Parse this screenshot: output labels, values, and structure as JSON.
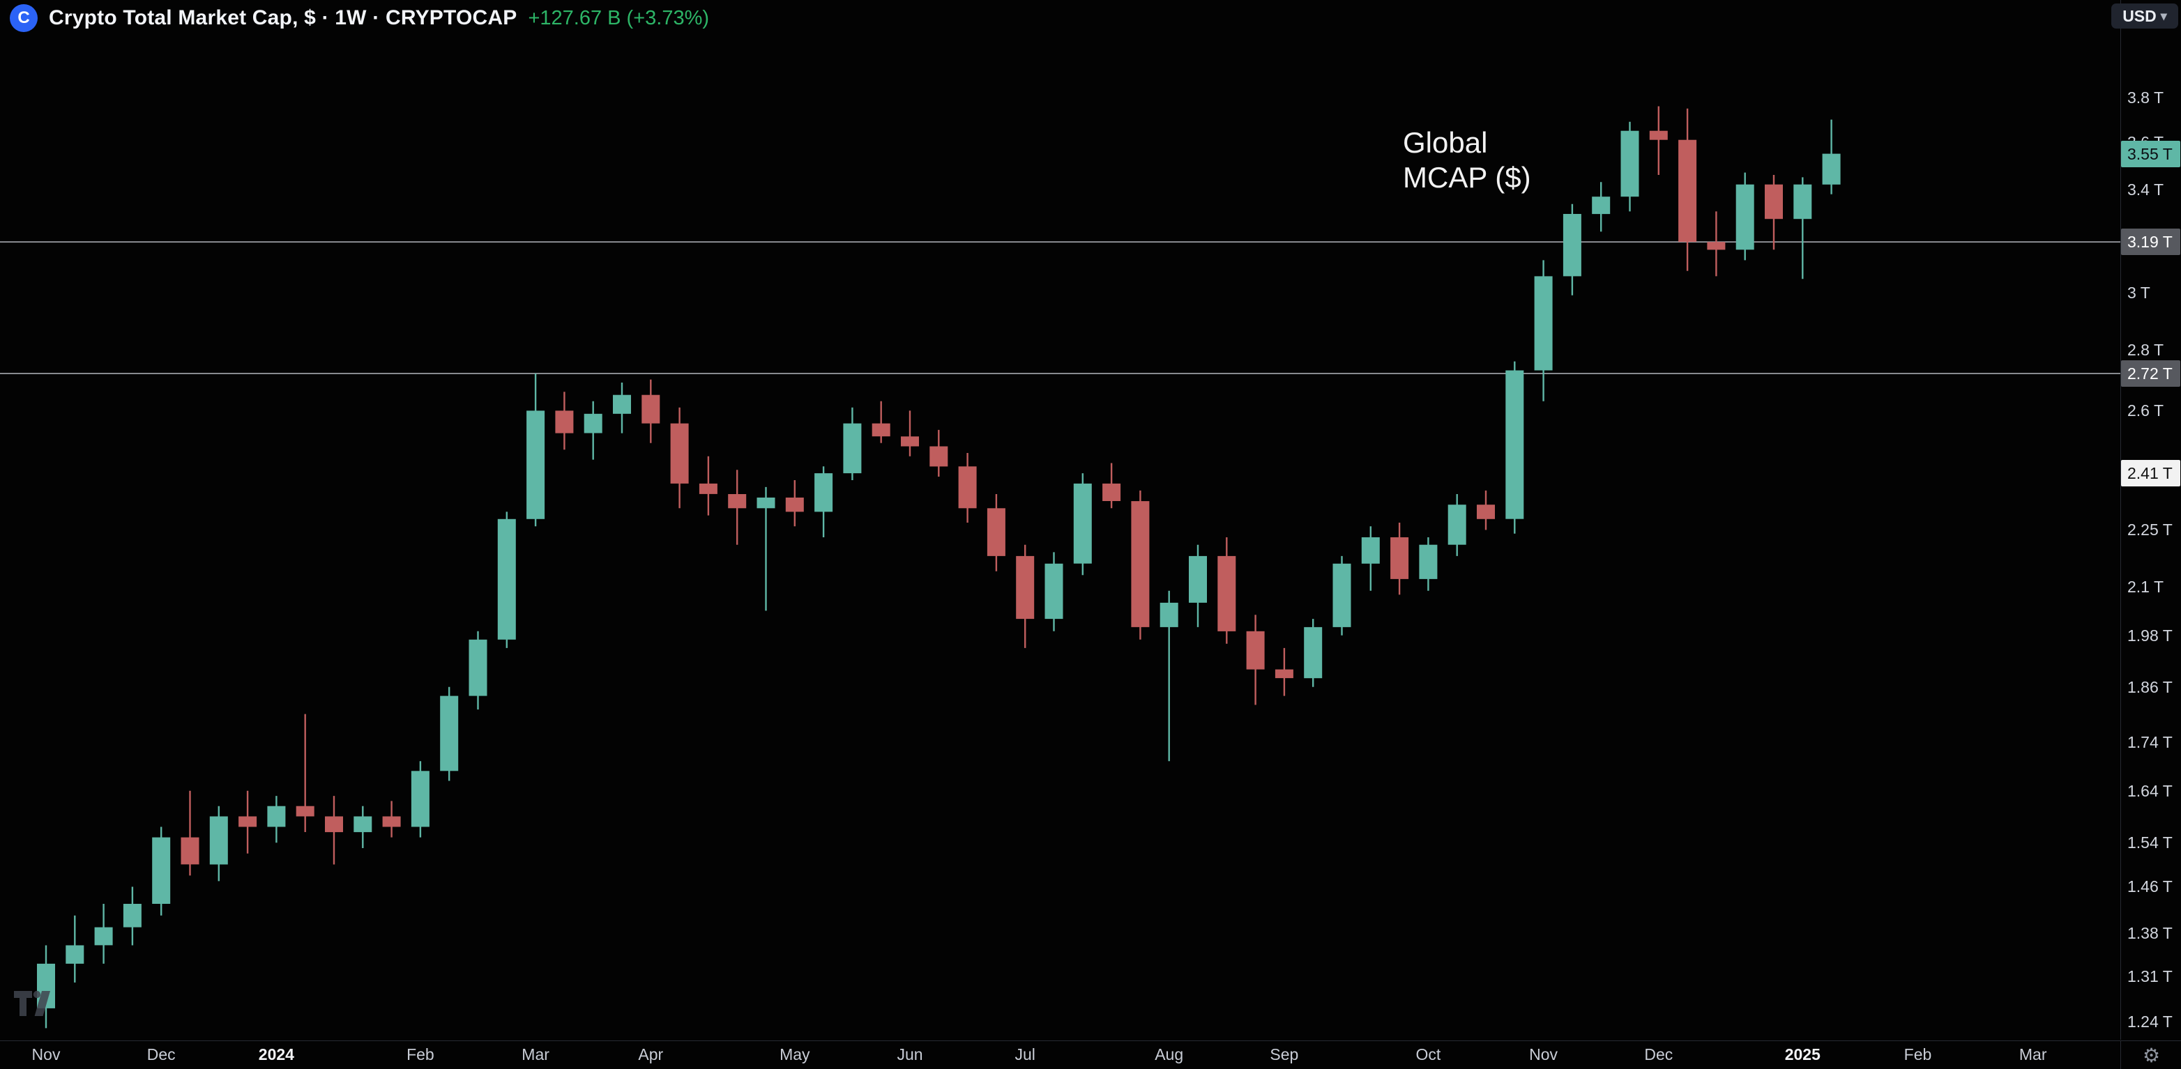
{
  "header": {
    "logo_letter": "C",
    "logo_bg": "#2b63f6",
    "symbol_title": "Crypto Total Market Cap, $ · 1W · CRYPTOCAP",
    "change": "+127.67 B (+3.73%)",
    "change_color": "#2db567"
  },
  "toolbar": {
    "currency_label": "USD"
  },
  "annotation": {
    "line1": "Global",
    "line2": "MCAP ($)"
  },
  "chart_data": {
    "type": "candlestick",
    "title": "Crypto Total Market Cap, $ · 1W · CRYPTOCAP",
    "annotation": "Global MCAP ($)",
    "scale": "logarithmic",
    "unit": "USD trillions",
    "interval": "1W",
    "last_price": 3.55,
    "last_bar_change": "+127.67 B (+3.73%)",
    "ylim": [
      1.21,
      3.85
    ],
    "colors": {
      "up": "#5fb7a6",
      "down": "#c05e5e",
      "level_line": "#a6a9b0"
    },
    "ohlc_order": [
      "open",
      "high",
      "low",
      "close"
    ],
    "candles": [
      [
        1.26,
        1.36,
        1.23,
        1.33
      ],
      [
        1.33,
        1.41,
        1.3,
        1.36
      ],
      [
        1.36,
        1.43,
        1.33,
        1.39
      ],
      [
        1.39,
        1.46,
        1.36,
        1.43
      ],
      [
        1.43,
        1.57,
        1.41,
        1.55
      ],
      [
        1.55,
        1.64,
        1.48,
        1.5
      ],
      [
        1.5,
        1.61,
        1.47,
        1.59
      ],
      [
        1.59,
        1.64,
        1.52,
        1.57
      ],
      [
        1.57,
        1.63,
        1.54,
        1.61
      ],
      [
        1.61,
        1.8,
        1.56,
        1.59
      ],
      [
        1.59,
        1.63,
        1.5,
        1.56
      ],
      [
        1.56,
        1.61,
        1.53,
        1.59
      ],
      [
        1.59,
        1.62,
        1.55,
        1.57
      ],
      [
        1.57,
        1.7,
        1.55,
        1.68
      ],
      [
        1.68,
        1.86,
        1.66,
        1.84
      ],
      [
        1.84,
        1.99,
        1.81,
        1.97
      ],
      [
        1.97,
        2.3,
        1.95,
        2.28
      ],
      [
        2.28,
        2.72,
        2.26,
        2.6
      ],
      [
        2.6,
        2.66,
        2.48,
        2.53
      ],
      [
        2.53,
        2.63,
        2.45,
        2.59
      ],
      [
        2.59,
        2.69,
        2.53,
        2.65
      ],
      [
        2.65,
        2.7,
        2.5,
        2.56
      ],
      [
        2.56,
        2.61,
        2.31,
        2.38
      ],
      [
        2.38,
        2.46,
        2.29,
        2.35
      ],
      [
        2.35,
        2.42,
        2.21,
        2.31
      ],
      [
        2.31,
        2.37,
        2.04,
        2.34
      ],
      [
        2.34,
        2.39,
        2.26,
        2.3
      ],
      [
        2.3,
        2.43,
        2.23,
        2.41
      ],
      [
        2.41,
        2.61,
        2.39,
        2.56
      ],
      [
        2.56,
        2.63,
        2.5,
        2.52
      ],
      [
        2.52,
        2.6,
        2.46,
        2.49
      ],
      [
        2.49,
        2.54,
        2.4,
        2.43
      ],
      [
        2.43,
        2.47,
        2.27,
        2.31
      ],
      [
        2.31,
        2.35,
        2.14,
        2.18
      ],
      [
        2.18,
        2.21,
        1.95,
        2.02
      ],
      [
        2.02,
        2.19,
        1.99,
        2.16
      ],
      [
        2.16,
        2.41,
        2.13,
        2.38
      ],
      [
        2.38,
        2.44,
        2.31,
        2.33
      ],
      [
        2.33,
        2.36,
        1.97,
        2.0
      ],
      [
        2.0,
        2.09,
        1.7,
        2.06
      ],
      [
        2.06,
        2.21,
        2.0,
        2.18
      ],
      [
        2.18,
        2.23,
        1.96,
        1.99
      ],
      [
        1.99,
        2.03,
        1.82,
        1.9
      ],
      [
        1.9,
        1.95,
        1.84,
        1.88
      ],
      [
        1.88,
        2.02,
        1.86,
        2.0
      ],
      [
        2.0,
        2.18,
        1.98,
        2.16
      ],
      [
        2.16,
        2.26,
        2.09,
        2.23
      ],
      [
        2.23,
        2.27,
        2.08,
        2.12
      ],
      [
        2.12,
        2.23,
        2.09,
        2.21
      ],
      [
        2.21,
        2.35,
        2.18,
        2.32
      ],
      [
        2.32,
        2.36,
        2.25,
        2.28
      ],
      [
        2.28,
        2.76,
        2.24,
        2.73
      ],
      [
        2.73,
        3.12,
        2.63,
        3.06
      ],
      [
        3.06,
        3.34,
        2.99,
        3.3
      ],
      [
        3.3,
        3.43,
        3.23,
        3.37
      ],
      [
        3.37,
        3.69,
        3.31,
        3.65
      ],
      [
        3.65,
        3.76,
        3.46,
        3.61
      ],
      [
        3.61,
        3.75,
        3.08,
        3.19
      ],
      [
        3.19,
        3.31,
        3.06,
        3.16
      ],
      [
        3.16,
        3.47,
        3.12,
        3.42
      ],
      [
        3.42,
        3.46,
        3.16,
        3.28
      ],
      [
        3.28,
        3.45,
        3.05,
        3.42
      ],
      [
        3.42,
        3.7,
        3.38,
        3.55
      ]
    ],
    "horizontal_lines": [
      {
        "value": 3.19
      },
      {
        "value": 2.72
      }
    ],
    "y_ticks": [
      {
        "label": "3.8 T",
        "value": 3.8
      },
      {
        "label": "3.6 T",
        "value": 3.6
      },
      {
        "label": "3.4 T",
        "value": 3.4
      },
      {
        "label": "3 T",
        "value": 3.0
      },
      {
        "label": "2.8 T",
        "value": 2.8
      },
      {
        "label": "2.6 T",
        "value": 2.6
      },
      {
        "label": "2.25 T",
        "value": 2.25
      },
      {
        "label": "2.1 T",
        "value": 2.1
      },
      {
        "label": "1.98 T",
        "value": 1.98
      },
      {
        "label": "1.86 T",
        "value": 1.86
      },
      {
        "label": "1.74 T",
        "value": 1.74
      },
      {
        "label": "1.64 T",
        "value": 1.64
      },
      {
        "label": "1.54 T",
        "value": 1.54
      },
      {
        "label": "1.46 T",
        "value": 1.46
      },
      {
        "label": "1.38 T",
        "value": 1.38
      },
      {
        "label": "1.31 T",
        "value": 1.31
      },
      {
        "label": "1.24 T",
        "value": 1.24
      }
    ],
    "price_badges": [
      {
        "label": "3.55 T",
        "value": 3.55,
        "bg": "#5fb7a6",
        "fg": "#0b0e13",
        "kind": "last-price"
      },
      {
        "label": "3.19 T",
        "value": 3.19,
        "bg": "#57595f",
        "fg": "#ffffff",
        "kind": "level-label"
      },
      {
        "label": "2.72 T",
        "value": 2.72,
        "bg": "#57595f",
        "fg": "#ffffff",
        "kind": "level-label"
      },
      {
        "label": "2.41 T",
        "value": 2.41,
        "bg": "#f2f2f2",
        "fg": "#111111",
        "kind": "level-label"
      }
    ],
    "x_ticks": [
      {
        "label": "Nov",
        "index": 0,
        "bold": false
      },
      {
        "label": "Dec",
        "index": 4,
        "bold": false
      },
      {
        "label": "2024",
        "index": 8,
        "bold": true
      },
      {
        "label": "Feb",
        "index": 13,
        "bold": false
      },
      {
        "label": "Mar",
        "index": 17,
        "bold": false
      },
      {
        "label": "Apr",
        "index": 21,
        "bold": false
      },
      {
        "label": "May",
        "index": 26,
        "bold": false
      },
      {
        "label": "Jun",
        "index": 30,
        "bold": false
      },
      {
        "label": "Jul",
        "index": 34,
        "bold": false
      },
      {
        "label": "Aug",
        "index": 39,
        "bold": false
      },
      {
        "label": "Sep",
        "index": 43,
        "bold": false
      },
      {
        "label": "Oct",
        "index": 48,
        "bold": false
      },
      {
        "label": "Nov",
        "index": 52,
        "bold": false
      },
      {
        "label": "Dec",
        "index": 56,
        "bold": false
      },
      {
        "label": "2025",
        "index": 61,
        "bold": true
      },
      {
        "label": "Feb",
        "index": 65,
        "bold": false
      },
      {
        "label": "Mar",
        "index": 69,
        "bold": false
      }
    ]
  }
}
